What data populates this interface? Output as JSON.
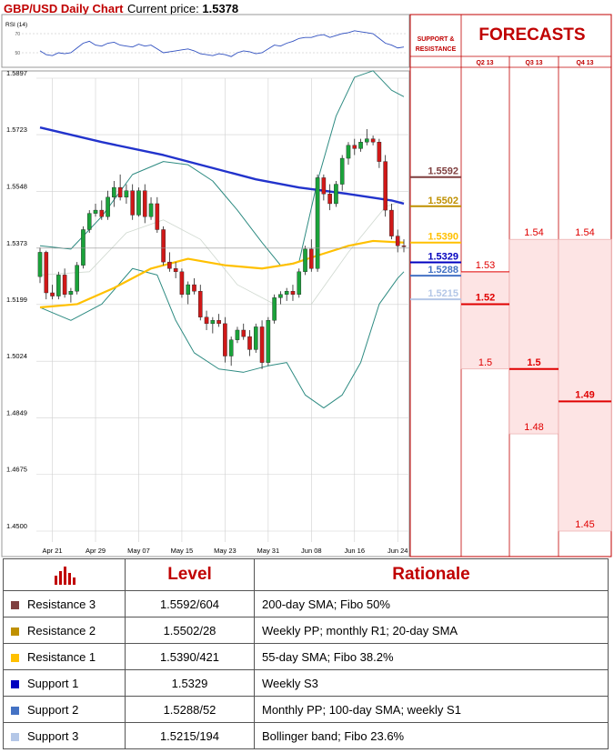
{
  "header": {
    "title": "GBP/USD Daily Chart",
    "price_label": "Current price:",
    "price_value": "1.5378"
  },
  "rsi": {
    "label": "RSI (14)",
    "ticks": [
      "70",
      "50"
    ]
  },
  "side_header": {
    "support_resistance": "SUPPORT & RESISTANCE",
    "forecasts": "FORECASTS"
  },
  "table": {
    "col_level": "Level",
    "col_rationale": "Rationale",
    "rows": [
      {
        "name": "Resistance 3",
        "level": "1.5592/604",
        "rationale": "200-day SMA; Fibo 50%",
        "color": "#7f3f3f"
      },
      {
        "name": "Resistance 2",
        "level": "1.5502/28",
        "rationale": "Weekly PP; monthly R1; 20-day SMA",
        "color": "#bf9000"
      },
      {
        "name": "Resistance 1",
        "level": "1.5390/421",
        "rationale": "55-day SMA; Fibo 38.2%",
        "color": "#ffc000"
      },
      {
        "name": "Support 1",
        "level": "1.5329",
        "rationale": "Weekly S3",
        "color": "#0000c0"
      },
      {
        "name": "Support 2",
        "level": "1.5288/52",
        "rationale": "Monthly PP; 100-day SMA; weekly S1",
        "color": "#4472c4"
      },
      {
        "name": "Support 3",
        "level": "1.5215/194",
        "rationale": "Bollinger band; Fibo 23.6%",
        "color": "#b4c7e7"
      }
    ]
  },
  "chart_data": {
    "type": "candlestick",
    "title": "GBP/USD Daily Chart",
    "y_range": [
      1.45,
      1.5897
    ],
    "y_ticks": [
      "1.5897",
      "1.5723",
      "1.5548",
      "1.5373",
      "1.5199",
      "1.5024",
      "1.4849",
      "1.4675",
      "1.4500"
    ],
    "x_ticks": [
      "Apr 21",
      "Apr 29",
      "May 07",
      "May 15",
      "May 23",
      "May 31",
      "Jun 08",
      "Jun 16",
      "Jun 24"
    ],
    "candles_ohlc": [
      [
        1.5285,
        1.5375,
        1.5265,
        1.536
      ],
      [
        1.536,
        1.5365,
        1.5215,
        1.5235
      ],
      [
        1.5235,
        1.526,
        1.5215,
        1.5225
      ],
      [
        1.5225,
        1.53,
        1.5215,
        1.529
      ],
      [
        1.529,
        1.531,
        1.522,
        1.523
      ],
      [
        1.523,
        1.525,
        1.5205,
        1.524
      ],
      [
        1.524,
        1.533,
        1.523,
        1.532
      ],
      [
        1.532,
        1.544,
        1.531,
        1.543
      ],
      [
        1.543,
        1.549,
        1.542,
        1.548
      ],
      [
        1.548,
        1.551,
        1.547,
        1.549
      ],
      [
        1.549,
        1.552,
        1.546,
        1.547
      ],
      [
        1.547,
        1.555,
        1.546,
        1.553
      ],
      [
        1.553,
        1.558,
        1.55,
        1.556
      ],
      [
        1.556,
        1.56,
        1.552,
        1.553
      ],
      [
        1.553,
        1.557,
        1.551,
        1.555
      ],
      [
        1.555,
        1.557,
        1.546,
        1.5475
      ],
      [
        1.5475,
        1.556,
        1.547,
        1.555
      ],
      [
        1.555,
        1.557,
        1.545,
        1.547
      ],
      [
        1.547,
        1.553,
        1.546,
        1.551
      ],
      [
        1.551,
        1.553,
        1.542,
        1.543
      ],
      [
        1.543,
        1.544,
        1.532,
        1.533
      ],
      [
        1.533,
        1.536,
        1.53,
        1.531
      ],
      [
        1.531,
        1.533,
        1.528,
        1.53
      ],
      [
        1.53,
        1.531,
        1.522,
        1.523
      ],
      [
        1.523,
        1.527,
        1.52,
        1.526
      ],
      [
        1.526,
        1.528,
        1.523,
        1.524
      ],
      [
        1.524,
        1.526,
        1.515,
        1.516
      ],
      [
        1.516,
        1.518,
        1.512,
        1.514
      ],
      [
        1.514,
        1.516,
        1.511,
        1.515
      ],
      [
        1.515,
        1.517,
        1.513,
        1.514
      ],
      [
        1.514,
        1.516,
        1.502,
        1.504
      ],
      [
        1.504,
        1.51,
        1.501,
        1.509
      ],
      [
        1.509,
        1.513,
        1.508,
        1.512
      ],
      [
        1.512,
        1.514,
        1.509,
        1.51
      ],
      [
        1.51,
        1.512,
        1.504,
        1.506
      ],
      [
        1.506,
        1.514,
        1.505,
        1.513
      ],
      [
        1.513,
        1.515,
        1.5,
        1.502
      ],
      [
        1.502,
        1.516,
        1.501,
        1.515
      ],
      [
        1.515,
        1.523,
        1.514,
        1.522
      ],
      [
        1.522,
        1.524,
        1.52,
        1.523
      ],
      [
        1.523,
        1.525,
        1.521,
        1.524
      ],
      [
        1.524,
        1.526,
        1.521,
        1.523
      ],
      [
        1.523,
        1.531,
        1.522,
        1.53
      ],
      [
        1.53,
        1.538,
        1.529,
        1.537
      ],
      [
        1.537,
        1.54,
        1.53,
        1.531
      ],
      [
        1.531,
        1.56,
        1.53,
        1.559
      ],
      [
        1.559,
        1.56,
        1.552,
        1.554
      ],
      [
        1.554,
        1.557,
        1.549,
        1.551
      ],
      [
        1.551,
        1.558,
        1.55,
        1.557
      ],
      [
        1.557,
        1.566,
        1.555,
        1.565
      ],
      [
        1.565,
        1.57,
        1.563,
        1.569
      ],
      [
        1.569,
        1.571,
        1.566,
        1.568
      ],
      [
        1.568,
        1.571,
        1.567,
        1.57
      ],
      [
        1.57,
        1.574,
        1.569,
        1.571
      ],
      [
        1.571,
        1.572,
        1.569,
        1.57
      ],
      [
        1.57,
        1.571,
        1.562,
        1.564
      ],
      [
        1.564,
        1.566,
        1.547,
        1.549
      ],
      [
        1.549,
        1.551,
        1.54,
        1.541
      ],
      [
        1.541,
        1.543,
        1.536,
        1.538
      ],
      [
        1.538,
        1.54,
        1.536,
        1.5378
      ]
    ],
    "sma200": [
      [
        0,
        1.5745
      ],
      [
        10,
        1.57
      ],
      [
        20,
        1.566
      ],
      [
        28,
        1.562
      ],
      [
        35,
        1.5585
      ],
      [
        42,
        1.556
      ],
      [
        50,
        1.554
      ],
      [
        57,
        1.552
      ],
      [
        59,
        1.551
      ]
    ],
    "sma55": [
      [
        0,
        1.519
      ],
      [
        6,
        1.52
      ],
      [
        12,
        1.525
      ],
      [
        18,
        1.531
      ],
      [
        24,
        1.534
      ],
      [
        30,
        1.532
      ],
      [
        36,
        1.531
      ],
      [
        41,
        1.5325
      ],
      [
        45,
        1.535
      ],
      [
        50,
        1.538
      ],
      [
        54,
        1.5395
      ],
      [
        59,
        1.539
      ]
    ],
    "bb_upper": [
      [
        0,
        1.538
      ],
      [
        5,
        1.537
      ],
      [
        10,
        1.547
      ],
      [
        15,
        1.56
      ],
      [
        20,
        1.564
      ],
      [
        24,
        1.563
      ],
      [
        28,
        1.558
      ],
      [
        32,
        1.549
      ],
      [
        36,
        1.539
      ],
      [
        39,
        1.532
      ],
      [
        42,
        1.533
      ],
      [
        45,
        1.558
      ],
      [
        48,
        1.578
      ],
      [
        51,
        1.59
      ],
      [
        54,
        1.592
      ],
      [
        57,
        1.586
      ],
      [
        59,
        1.584
      ]
    ],
    "bb_lower": [
      [
        0,
        1.519
      ],
      [
        5,
        1.515
      ],
      [
        10,
        1.52
      ],
      [
        15,
        1.531
      ],
      [
        19,
        1.529
      ],
      [
        22,
        1.515
      ],
      [
        25,
        1.505
      ],
      [
        29,
        1.5
      ],
      [
        33,
        1.499
      ],
      [
        37,
        1.501
      ],
      [
        40,
        1.502
      ],
      [
        43,
        1.492
      ],
      [
        46,
        1.488
      ],
      [
        49,
        1.492
      ],
      [
        52,
        1.502
      ],
      [
        55,
        1.52
      ],
      [
        58,
        1.528
      ],
      [
        59,
        1.53
      ]
    ],
    "bb_mid": [
      [
        0,
        1.529
      ],
      [
        8,
        1.53
      ],
      [
        14,
        1.542
      ],
      [
        20,
        1.546
      ],
      [
        26,
        1.54
      ],
      [
        32,
        1.526
      ],
      [
        38,
        1.52
      ],
      [
        44,
        1.52
      ],
      [
        50,
        1.536
      ],
      [
        56,
        1.55
      ],
      [
        59,
        1.552
      ]
    ],
    "rsi_values": [
      52,
      48,
      47,
      50,
      49,
      50,
      55,
      60,
      62,
      58,
      57,
      60,
      61,
      58,
      57,
      56,
      59,
      57,
      58,
      54,
      50,
      51,
      52,
      53,
      54,
      52,
      49,
      48,
      47,
      49,
      48,
      46,
      50,
      52,
      51,
      49,
      50,
      54,
      58,
      57,
      60,
      62,
      65,
      66,
      66,
      68,
      69,
      66,
      68,
      70,
      71,
      73,
      72,
      71,
      70,
      65,
      60,
      58,
      55,
      56
    ],
    "levels": [
      {
        "label": "1.5592",
        "value": 1.5592,
        "color": "#7f3f3f"
      },
      {
        "label": "1.5502",
        "value": 1.5502,
        "color": "#bf9000"
      },
      {
        "label": "1.5390",
        "value": 1.539,
        "color": "#ffc000"
      },
      {
        "label": "1.5329",
        "value": 1.5329,
        "color": "#0000c0"
      },
      {
        "label": "1.5288",
        "value": 1.5288,
        "color": "#4472c4"
      },
      {
        "label": "1.5215",
        "value": 1.5215,
        "color": "#b4c7e7"
      }
    ],
    "forecast_columns": [
      "Q2 13",
      "Q3 13",
      "Q4 13"
    ],
    "forecasts": [
      {
        "col": 0,
        "label": "1.53",
        "value": 1.53,
        "bold": false,
        "marker": true
      },
      {
        "col": 0,
        "label": "1.52",
        "value": 1.52,
        "bold": true,
        "marker": true
      },
      {
        "col": 0,
        "label": "1.5",
        "value": 1.5,
        "bold": false,
        "marker": false
      },
      {
        "col": 1,
        "label": "1.54",
        "value": 1.54,
        "bold": false,
        "marker": false
      },
      {
        "col": 1,
        "label": "1.5",
        "value": 1.5,
        "bold": true,
        "marker": true
      },
      {
        "col": 1,
        "label": "1.48",
        "value": 1.48,
        "bold": false,
        "marker": false
      },
      {
        "col": 2,
        "label": "1.54",
        "value": 1.54,
        "bold": false,
        "marker": false
      },
      {
        "col": 2,
        "label": "1.49",
        "value": 1.49,
        "bold": true,
        "marker": true
      },
      {
        "col": 2,
        "label": "1.45",
        "value": 1.45,
        "bold": false,
        "marker": false
      }
    ],
    "forecast_ranges": [
      [
        1.5,
        1.53
      ],
      [
        1.48,
        1.54
      ],
      [
        1.45,
        1.54
      ]
    ]
  }
}
